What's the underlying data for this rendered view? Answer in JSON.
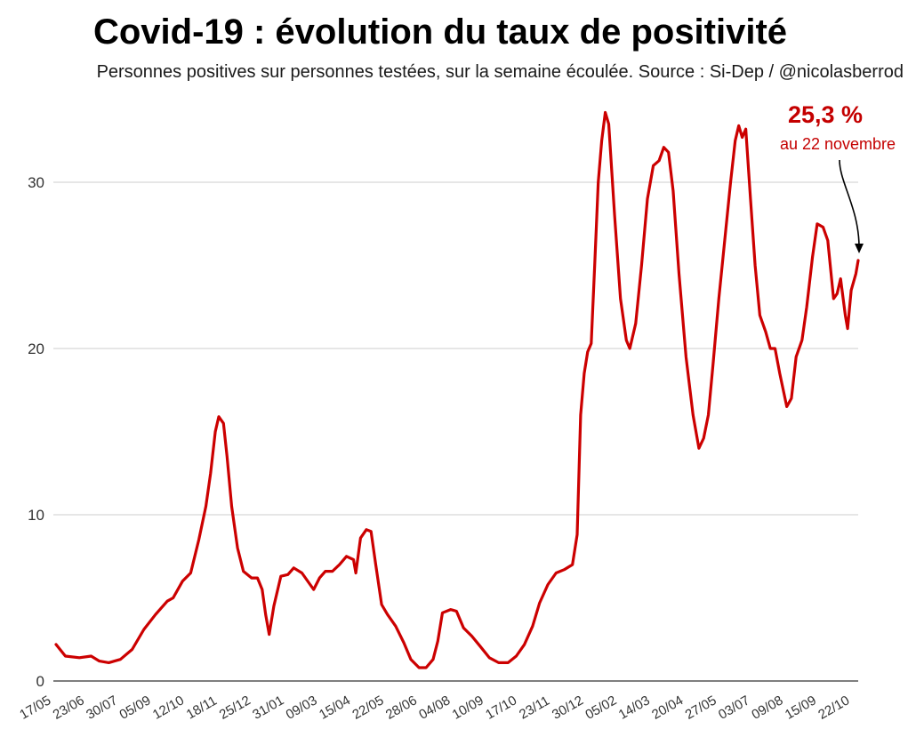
{
  "title": "Covid-19 : évolution du taux de positivité",
  "subtitle": "Personnes positives sur personnes testées, sur la semaine écoulée. Source : Si-Dep / @nicolasberrod",
  "chart_data": {
    "type": "line",
    "title": "Covid-19 : évolution du taux de positivité",
    "subtitle": "Personnes positives sur personnes testées, sur la semaine écoulée. Source : Si-Dep / @nicolasberrod",
    "xlabel": "",
    "ylabel": "",
    "ylim": [
      0,
      34
    ],
    "yticks": [
      0,
      10,
      20,
      30
    ],
    "grid": true,
    "line_color": "#cc0000",
    "x_tick_labels": [
      "17/05",
      "23/06",
      "30/07",
      "05/09",
      "12/10",
      "18/11",
      "25/12",
      "31/01",
      "09/03",
      "15/04",
      "22/05",
      "28/06",
      "04/08",
      "10/09",
      "17/10",
      "23/11",
      "30/12",
      "05/02",
      "14/03",
      "20/04",
      "27/05",
      "03/07",
      "09/08",
      "15/09",
      "22/10"
    ],
    "series": [
      {
        "values": [
          [
            0,
            2.2
          ],
          [
            8,
            1.5
          ],
          [
            20,
            1.4
          ],
          [
            30,
            1.5
          ],
          [
            37,
            1.2
          ],
          [
            45,
            1.1
          ],
          [
            55,
            1.3
          ],
          [
            65,
            1.9
          ],
          [
            75,
            3.1
          ],
          [
            85,
            4.0
          ],
          [
            95,
            4.8
          ],
          [
            100,
            5.0
          ],
          [
            108,
            6.0
          ],
          [
            115,
            6.5
          ],
          [
            122,
            8.5
          ],
          [
            128,
            10.5
          ],
          [
            132,
            12.5
          ],
          [
            136,
            15.0
          ],
          [
            139,
            15.9
          ],
          [
            143,
            15.5
          ],
          [
            146,
            13.5
          ],
          [
            150,
            10.5
          ],
          [
            155,
            8.0
          ],
          [
            160,
            6.6
          ],
          [
            167,
            6.2
          ],
          [
            172,
            6.2
          ],
          [
            176,
            5.5
          ],
          [
            179,
            4.0
          ],
          [
            182,
            2.8
          ],
          [
            186,
            4.5
          ],
          [
            192,
            6.3
          ],
          [
            198,
            6.4
          ],
          [
            203,
            6.8
          ],
          [
            210,
            6.5
          ],
          [
            217,
            5.8
          ],
          [
            220,
            5.5
          ],
          [
            225,
            6.2
          ],
          [
            230,
            6.6
          ],
          [
            236,
            6.6
          ],
          [
            242,
            7.0
          ],
          [
            248,
            7.5
          ],
          [
            254,
            7.3
          ],
          [
            256,
            6.5
          ],
          [
            260,
            8.6
          ],
          [
            265,
            9.1
          ],
          [
            269,
            9.0
          ],
          [
            273,
            7.0
          ],
          [
            278,
            4.6
          ],
          [
            283,
            4.0
          ],
          [
            290,
            3.3
          ],
          [
            297,
            2.3
          ],
          [
            303,
            1.3
          ],
          [
            310,
            0.8
          ],
          [
            316,
            0.8
          ],
          [
            322,
            1.3
          ],
          [
            326,
            2.4
          ],
          [
            330,
            4.1
          ],
          [
            337,
            4.3
          ],
          [
            342,
            4.2
          ],
          [
            348,
            3.2
          ],
          [
            355,
            2.7
          ],
          [
            362,
            2.1
          ],
          [
            370,
            1.4
          ],
          [
            378,
            1.1
          ],
          [
            386,
            1.1
          ],
          [
            393,
            1.5
          ],
          [
            400,
            2.2
          ],
          [
            407,
            3.3
          ],
          [
            413,
            4.7
          ],
          [
            420,
            5.8
          ],
          [
            427,
            6.5
          ],
          [
            434,
            6.7
          ],
          [
            441,
            7.0
          ],
          [
            445,
            8.8
          ],
          [
            448,
            16.0
          ],
          [
            451,
            18.5
          ],
          [
            454,
            19.8
          ],
          [
            457,
            20.3
          ],
          [
            460,
            25.0
          ],
          [
            463,
            30.0
          ],
          [
            466,
            32.5
          ],
          [
            469,
            34.2
          ],
          [
            472,
            33.5
          ],
          [
            477,
            28.0
          ],
          [
            482,
            23.0
          ],
          [
            487,
            20.5
          ],
          [
            490,
            20.0
          ],
          [
            495,
            21.5
          ],
          [
            500,
            25.0
          ],
          [
            505,
            29.0
          ],
          [
            510,
            31.0
          ],
          [
            515,
            31.3
          ],
          [
            519,
            32.1
          ],
          [
            523,
            31.8
          ],
          [
            527,
            29.5
          ],
          [
            532,
            24.5
          ],
          [
            538,
            19.5
          ],
          [
            544,
            16.0
          ],
          [
            549,
            14.0
          ],
          [
            553,
            14.6
          ],
          [
            557,
            16.0
          ],
          [
            561,
            19.0
          ],
          [
            566,
            23.0
          ],
          [
            571,
            26.5
          ],
          [
            576,
            30.0
          ],
          [
            580,
            32.5
          ],
          [
            583,
            33.4
          ],
          [
            586,
            32.7
          ],
          [
            589,
            33.2
          ],
          [
            593,
            29.0
          ],
          [
            597,
            25.0
          ],
          [
            601,
            22.0
          ],
          [
            606,
            21.0
          ],
          [
            610,
            20.0
          ],
          [
            614,
            20.0
          ],
          [
            618,
            18.5
          ],
          [
            624,
            16.5
          ],
          [
            628,
            17.0
          ],
          [
            632,
            19.5
          ],
          [
            637,
            20.5
          ],
          [
            641,
            22.5
          ],
          [
            646,
            25.5
          ],
          [
            650,
            27.5
          ],
          [
            655,
            27.3
          ],
          [
            659,
            26.5
          ],
          [
            664,
            23.0
          ],
          [
            667,
            23.3
          ],
          [
            670,
            24.2
          ],
          [
            674,
            22.0
          ],
          [
            676,
            21.2
          ],
          [
            679,
            23.5
          ],
          [
            683,
            24.5
          ],
          [
            685,
            25.3
          ]
        ]
      }
    ],
    "annotation": {
      "value_label": "25,3 %",
      "date_label": "au 22 novembre",
      "value": 25.3
    }
  }
}
